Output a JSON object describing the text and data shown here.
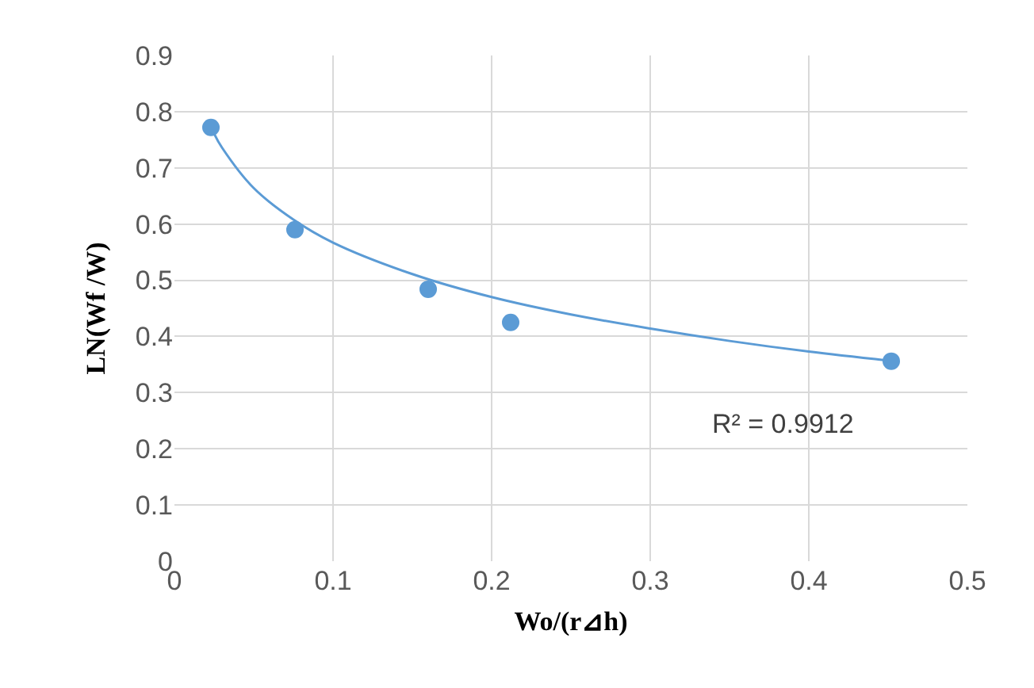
{
  "chart_data": {
    "type": "scatter",
    "xlabel": "Wo/(r⊿h)",
    "ylabel": "LN(Wf /W)",
    "series": [
      {
        "type": "scatter",
        "color": "#5b9bd5",
        "marker": "circle",
        "x": [
          0.023,
          0.076,
          0.16,
          0.212,
          0.452
        ],
        "values": [
          0.772,
          0.59,
          0.484,
          0.425,
          0.356
        ]
      },
      {
        "type": "line",
        "color": "#5b9bd5",
        "marker": "none",
        "x": [
          0.025,
          0.03,
          0.05,
          0.075,
          0.1,
          0.15,
          0.2,
          0.25,
          0.3,
          0.35,
          0.4,
          0.45
        ],
        "values": [
          0.761,
          0.736,
          0.664,
          0.608,
          0.567,
          0.511,
          0.47,
          0.439,
          0.414,
          0.392,
          0.373,
          0.357
        ]
      }
    ],
    "annotations": [
      "R² = 0.9912"
    ],
    "xlim": [
      0,
      0.5
    ],
    "xticks": [
      0,
      0.1,
      0.2,
      0.3,
      0.4,
      0.5
    ],
    "ylim": [
      0,
      0.9
    ],
    "yticks": [
      0,
      0.1,
      0.2,
      0.3,
      0.4,
      0.5,
      0.6,
      0.7,
      0.8,
      0.9
    ],
    "grid": true
  }
}
